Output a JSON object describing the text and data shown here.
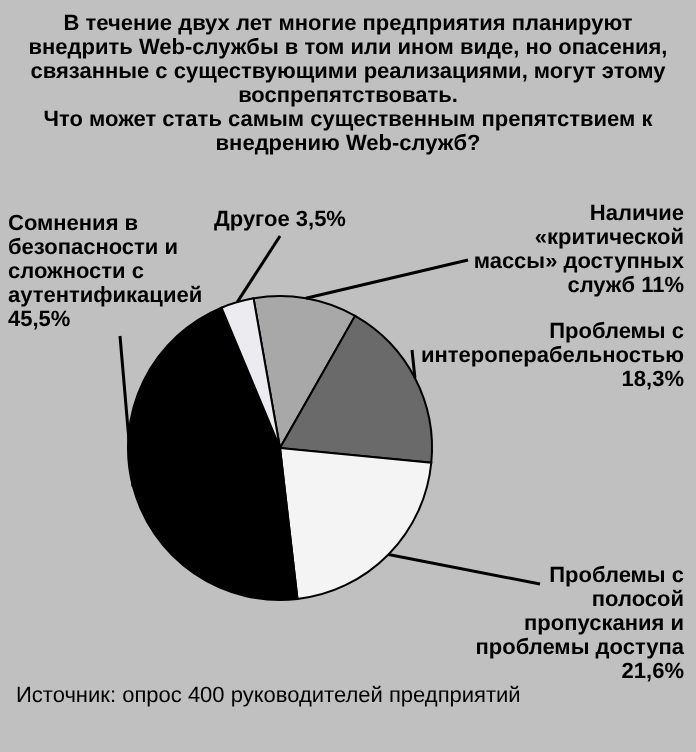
{
  "chart_data": {
    "type": "pie",
    "title": "В течение двух лет многие предприятия планируют внедрить Web-службы в том или ином виде, но опасения, связанные с существующими реализациями, могут этому воспрепятствовать.",
    "subtitle": "Что может стать самым существенным препятствием к внедрению Web-служб?",
    "categories": [
      "Наличие «критической массы» доступных служб",
      "Проблемы с интероперабельностью",
      "Проблемы с полосой пропускания и проблемы доступа",
      "Сомнения в безопасности и сложности с аутентификацией",
      "Другое"
    ],
    "values": [
      11,
      18.3,
      21.6,
      45.5,
      3.5
    ],
    "value_labels": [
      "11%",
      "18,3%",
      "21,6%",
      "45,5%",
      "3,5%"
    ],
    "colors": [
      "#a8a8a8",
      "#6a6a6a",
      "#f4f4f4",
      "#000000",
      "#ececf0"
    ],
    "annotations": [
      "Источник: опрос 400 руководителей предприятий"
    ]
  }
}
